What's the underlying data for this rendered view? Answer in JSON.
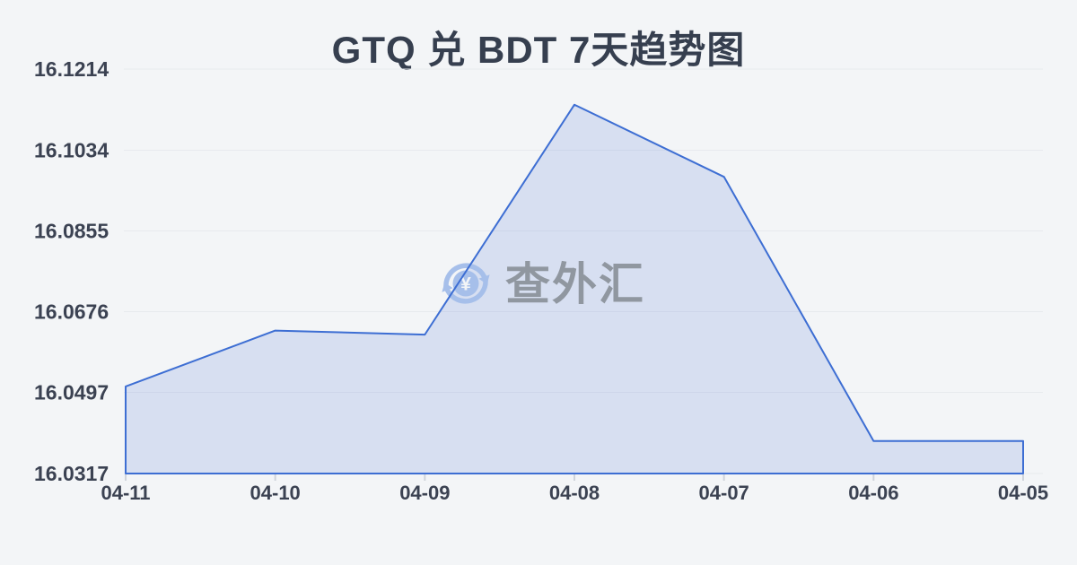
{
  "page": {
    "background_color": "#f3f5f7"
  },
  "chart_data": {
    "type": "area",
    "title": "GTQ 兑 BDT 7天趋势图",
    "categories": [
      "04-11",
      "04-10",
      "04-09",
      "04-08",
      "04-07",
      "04-06",
      "04-05"
    ],
    "values": [
      16.051,
      16.0634,
      16.0625,
      16.1135,
      16.0975,
      16.0389,
      16.0389
    ],
    "y_ticks": [
      "16.0317",
      "16.0497",
      "16.0676",
      "16.0855",
      "16.1034",
      "16.1214"
    ],
    "ylim": [
      16.0317,
      16.1214
    ],
    "xlabel": "",
    "ylabel": "",
    "grid": true,
    "legend": "none",
    "title_color": "#363f4f",
    "axis_label_color": "#3b4252",
    "line_color": "#3d6ed3",
    "fill_color": "#4c76d4",
    "fill_opacity": 0.17,
    "grid_color": "#e7eaee",
    "tick_color": "#cfd4db"
  },
  "watermark": {
    "text": "查外汇",
    "currency_symbol": "¥",
    "icon": "currency-exchange-icon",
    "icon_color": "#a6bfea",
    "text_color": "#9097a0"
  }
}
